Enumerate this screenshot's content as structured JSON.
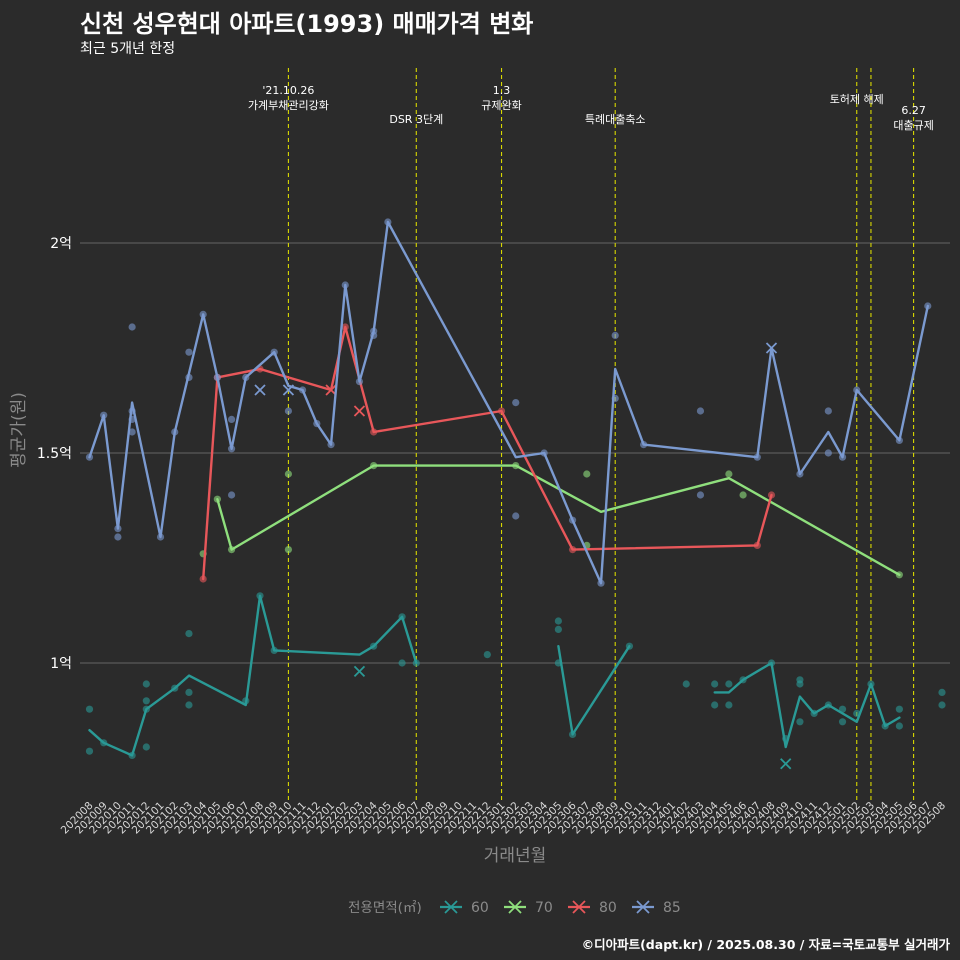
{
  "title": "신천 성우현대 아파트(1993) 매매가격 변화",
  "subtitle": "최근 5개년 한정",
  "caption": "©디아파트(dapt.kr) / 2025.08.30 / 자료=국토교통부 실거래가",
  "chart_data": {
    "type": "line",
    "xlabel": "거래년월",
    "ylabel": "평균가(원)",
    "x_categories": [
      "202008",
      "202009",
      "202010",
      "202011",
      "202012",
      "202101",
      "202102",
      "202103",
      "202104",
      "202105",
      "202106",
      "202107",
      "202108",
      "202109",
      "202110",
      "202111",
      "202112",
      "202201",
      "202202",
      "202203",
      "202204",
      "202205",
      "202206",
      "202207",
      "202208",
      "202209",
      "202210",
      "202211",
      "202212",
      "202301",
      "202302",
      "202303",
      "202304",
      "202305",
      "202306",
      "202307",
      "202308",
      "202309",
      "202310",
      "202311",
      "202312",
      "202401",
      "202402",
      "202403",
      "202404",
      "202405",
      "202406",
      "202407",
      "202408",
      "202409",
      "202410",
      "202411",
      "202412",
      "202501",
      "202502",
      "202503",
      "202504",
      "202505",
      "202506",
      "202507",
      "202508"
    ],
    "y_ticks": [
      {
        "value": 1.0,
        "label": "1억"
      },
      {
        "value": 1.5,
        "label": "1.5억"
      },
      {
        "value": 2.0,
        "label": "2억"
      }
    ],
    "ylim": [
      0.7,
      2.2
    ],
    "grid": "horizontal major lines",
    "legend": {
      "title": "전용면적(㎡)",
      "position": "bottom"
    },
    "events": [
      {
        "x": "202110",
        "label": "'21.10.26\n가계부채관리강화",
        "row": 0
      },
      {
        "x": "202207",
        "label": "DSR 3단계",
        "row": 1
      },
      {
        "x": "202301",
        "label": "1.3\n규제완화",
        "row": 0
      },
      {
        "x": "202309",
        "label": "특례대출축소",
        "row": 1
      },
      {
        "x": "202502",
        "label": "토허제 해제",
        "row": 0
      },
      {
        "x": "202503",
        "label": "",
        "row": 0
      },
      {
        "x": "202506",
        "label": "6.27\n대출규제",
        "row": 1
      }
    ],
    "series": [
      {
        "name": "60",
        "color": "#2a9a96",
        "line": [
          [
            "202008",
            0.84
          ],
          [
            "202009",
            0.81
          ],
          [
            "202011",
            0.78
          ],
          [
            "202012",
            0.89
          ],
          [
            "202102",
            0.94
          ],
          [
            "202103",
            0.97
          ],
          [
            "202107",
            0.9
          ],
          [
            "202108",
            1.16
          ],
          [
            "202109",
            1.03
          ],
          [
            "202203",
            1.02
          ],
          [
            "202204",
            1.04
          ],
          [
            "202206",
            1.11
          ],
          [
            "202207",
            1.0
          ]
        ],
        "line2": [
          [
            "202305",
            1.04
          ],
          [
            "202306",
            0.83
          ],
          [
            "202310",
            1.04
          ]
        ],
        "line3": [
          [
            "202404",
            0.93
          ],
          [
            "202405",
            0.93
          ],
          [
            "202406",
            0.96
          ],
          [
            "202408",
            1.0
          ],
          [
            "202409",
            0.8
          ],
          [
            "202410",
            0.92
          ],
          [
            "202411",
            0.88
          ],
          [
            "202412",
            0.9
          ],
          [
            "202501",
            0.88
          ],
          [
            "202502",
            0.86
          ],
          [
            "202503",
            0.95
          ],
          [
            "202504",
            0.85
          ],
          [
            "202505",
            0.87
          ]
        ],
        "points": [
          [
            "202008",
            0.89
          ],
          [
            "202008",
            0.79
          ],
          [
            "202009",
            0.81
          ],
          [
            "202011",
            0.78
          ],
          [
            "202012",
            0.95
          ],
          [
            "202012",
            0.91
          ],
          [
            "202012",
            0.89
          ],
          [
            "202012",
            0.8
          ],
          [
            "202102",
            0.94
          ],
          [
            "202103",
            1.07
          ],
          [
            "202103",
            0.93
          ],
          [
            "202103",
            0.9
          ],
          [
            "202107",
            0.91
          ],
          [
            "202108",
            1.16
          ],
          [
            "202109",
            1.03
          ],
          [
            "202204",
            1.04
          ],
          [
            "202206",
            1.11
          ],
          [
            "202206",
            1.0
          ],
          [
            "202207",
            1.0
          ],
          [
            "202212",
            1.02
          ],
          [
            "202305",
            1.1
          ],
          [
            "202305",
            1.08
          ],
          [
            "202305",
            1.0
          ],
          [
            "202306",
            0.83
          ],
          [
            "202310",
            1.04
          ],
          [
            "202402",
            0.95
          ],
          [
            "202404",
            0.95
          ],
          [
            "202404",
            0.9
          ],
          [
            "202405",
            0.95
          ],
          [
            "202405",
            0.9
          ],
          [
            "202406",
            0.96
          ],
          [
            "202408",
            1.0
          ],
          [
            "202409",
            0.82
          ],
          [
            "202410",
            0.96
          ],
          [
            "202410",
            0.95
          ],
          [
            "202410",
            0.86
          ],
          [
            "202411",
            0.88
          ],
          [
            "202412",
            0.9
          ],
          [
            "202501",
            0.89
          ],
          [
            "202501",
            0.86
          ],
          [
            "202502",
            0.88
          ],
          [
            "202503",
            0.95
          ],
          [
            "202504",
            0.85
          ],
          [
            "202505",
            0.89
          ],
          [
            "202505",
            0.85
          ],
          [
            "202508",
            0.93
          ],
          [
            "202508",
            0.9
          ]
        ],
        "crosses": [
          [
            "202203",
            0.98
          ],
          [
            "202409",
            0.76
          ]
        ]
      },
      {
        "name": "70",
        "color": "#8fdf7d",
        "line": [
          [
            "202105",
            1.39
          ],
          [
            "202106",
            1.27
          ],
          [
            "202204",
            1.47
          ],
          [
            "202302",
            1.47
          ],
          [
            "202308",
            1.36
          ],
          [
            "202405",
            1.44
          ],
          [
            "202505",
            1.21
          ]
        ],
        "points": [
          [
            "202104",
            1.26
          ],
          [
            "202105",
            1.39
          ],
          [
            "202106",
            1.27
          ],
          [
            "202110",
            1.45
          ],
          [
            "202110",
            1.27
          ],
          [
            "202204",
            1.47
          ],
          [
            "202302",
            1.47
          ],
          [
            "202307",
            1.45
          ],
          [
            "202307",
            1.28
          ],
          [
            "202405",
            1.45
          ],
          [
            "202406",
            1.4
          ],
          [
            "202505",
            1.21
          ]
        ],
        "crosses": []
      },
      {
        "name": "80",
        "color": "#e8575a",
        "line": [
          [
            "202104",
            1.2
          ],
          [
            "202105",
            1.68
          ],
          [
            "202108",
            1.7
          ],
          [
            "202201",
            1.65
          ],
          [
            "202202",
            1.8
          ],
          [
            "202204",
            1.55
          ],
          [
            "202301",
            1.6
          ],
          [
            "202306",
            1.27
          ],
          [
            "202407",
            1.28
          ],
          [
            "202408",
            1.4
          ]
        ],
        "points": [
          [
            "202104",
            1.2
          ],
          [
            "202105",
            1.68
          ],
          [
            "202108",
            1.7
          ],
          [
            "202202",
            1.8
          ],
          [
            "202204",
            1.55
          ],
          [
            "202301",
            1.6
          ],
          [
            "202306",
            1.27
          ],
          [
            "202407",
            1.28
          ],
          [
            "202408",
            1.4
          ]
        ],
        "crosses": [
          [
            "202201",
            1.65
          ],
          [
            "202203",
            1.6
          ]
        ]
      },
      {
        "name": "85",
        "color": "#7b9ad0",
        "line": [
          [
            "202008",
            1.49
          ],
          [
            "202009",
            1.59
          ],
          [
            "202010",
            1.32
          ],
          [
            "202011",
            1.62
          ],
          [
            "202101",
            1.3
          ],
          [
            "202102",
            1.55
          ],
          [
            "202104",
            1.83
          ],
          [
            "202105",
            1.68
          ],
          [
            "202106",
            1.51
          ],
          [
            "202107",
            1.68
          ],
          [
            "202109",
            1.74
          ],
          [
            "202110",
            1.66
          ],
          [
            "202111",
            1.65
          ],
          [
            "202112",
            1.57
          ],
          [
            "202201",
            1.52
          ],
          [
            "202202",
            1.9
          ],
          [
            "202203",
            1.67
          ],
          [
            "202204",
            1.79
          ],
          [
            "202205",
            2.05
          ],
          [
            "202302",
            1.49
          ],
          [
            "202304",
            1.5
          ],
          [
            "202306",
            1.34
          ],
          [
            "202308",
            1.19
          ],
          [
            "202309",
            1.7
          ],
          [
            "202311",
            1.52
          ],
          [
            "202407",
            1.49
          ],
          [
            "202408",
            1.75
          ],
          [
            "202410",
            1.45
          ],
          [
            "202412",
            1.55
          ],
          [
            "202501",
            1.49
          ],
          [
            "202502",
            1.65
          ],
          [
            "202505",
            1.53
          ],
          [
            "202507",
            1.85
          ]
        ],
        "points": [
          [
            "202008",
            1.49
          ],
          [
            "202009",
            1.59
          ],
          [
            "202010",
            1.32
          ],
          [
            "202010",
            1.3
          ],
          [
            "202011",
            1.8
          ],
          [
            "202011",
            1.6
          ],
          [
            "202011",
            1.58
          ],
          [
            "202011",
            1.55
          ],
          [
            "202101",
            1.3
          ],
          [
            "202102",
            1.55
          ],
          [
            "202103",
            1.74
          ],
          [
            "202103",
            1.68
          ],
          [
            "202104",
            1.83
          ],
          [
            "202105",
            1.68
          ],
          [
            "202106",
            1.58
          ],
          [
            "202106",
            1.51
          ],
          [
            "202106",
            1.4
          ],
          [
            "202107",
            1.68
          ],
          [
            "202109",
            1.74
          ],
          [
            "202110",
            1.6
          ],
          [
            "202111",
            1.65
          ],
          [
            "202112",
            1.57
          ],
          [
            "202201",
            1.52
          ],
          [
            "202202",
            1.9
          ],
          [
            "202203",
            1.67
          ],
          [
            "202204",
            1.79
          ],
          [
            "202204",
            1.78
          ],
          [
            "202205",
            2.05
          ],
          [
            "202302",
            1.62
          ],
          [
            "202302",
            1.35
          ],
          [
            "202304",
            1.5
          ],
          [
            "202306",
            1.34
          ],
          [
            "202308",
            1.19
          ],
          [
            "202309",
            1.78
          ],
          [
            "202309",
            1.63
          ],
          [
            "202311",
            1.52
          ],
          [
            "202403",
            1.6
          ],
          [
            "202403",
            1.4
          ],
          [
            "202407",
            1.49
          ],
          [
            "202410",
            1.45
          ],
          [
            "202412",
            1.6
          ],
          [
            "202412",
            1.5
          ],
          [
            "202501",
            1.49
          ],
          [
            "202502",
            1.65
          ],
          [
            "202505",
            1.53
          ],
          [
            "202507",
            1.85
          ]
        ],
        "crosses": [
          [
            "202108",
            1.65
          ],
          [
            "202110",
            1.65
          ],
          [
            "202408",
            1.75
          ]
        ]
      }
    ]
  }
}
